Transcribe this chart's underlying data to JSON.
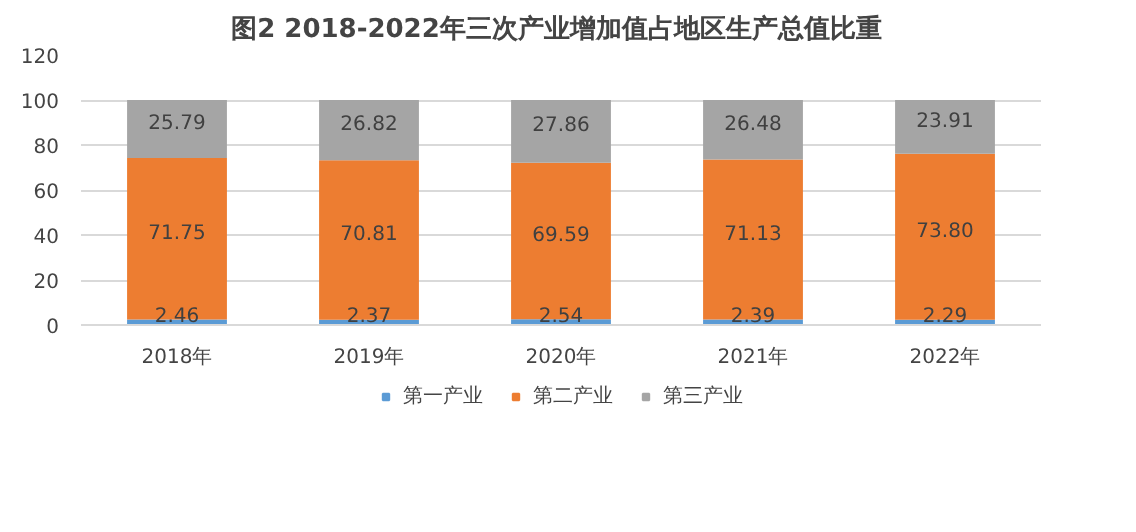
{
  "chart_data": {
    "type": "bar",
    "title": "图2  2018-2022年三次产业增加值占地区生产总值比重",
    "categories": [
      "2018年",
      "2019年",
      "2020年",
      "2021年",
      "2022年"
    ],
    "stacked": true,
    "series": [
      {
        "name": "第一产业",
        "color": "#5b9bd5",
        "values": [
          2.46,
          2.37,
          2.54,
          2.39,
          2.29
        ],
        "value_labels": [
          "2.46",
          "2.37",
          "2.54",
          "2.39",
          "2.29"
        ]
      },
      {
        "name": "第二产业",
        "color": "#ed7d31",
        "values": [
          71.75,
          70.81,
          69.59,
          71.13,
          73.8
        ],
        "value_labels": [
          "71.75",
          "70.81",
          "69.59",
          "71.13",
          "73.80"
        ]
      },
      {
        "name": "第三产业",
        "color": "#a5a5a5",
        "values": [
          25.79,
          26.82,
          27.86,
          26.48,
          23.91
        ],
        "value_labels": [
          "25.79",
          "26.82",
          "27.86",
          "26.48",
          "23.91"
        ]
      }
    ],
    "ylim": [
      0,
      120
    ],
    "yticks": [
      0,
      20,
      40,
      60,
      80,
      100,
      120
    ],
    "grid": "y",
    "legend": "bottom"
  }
}
